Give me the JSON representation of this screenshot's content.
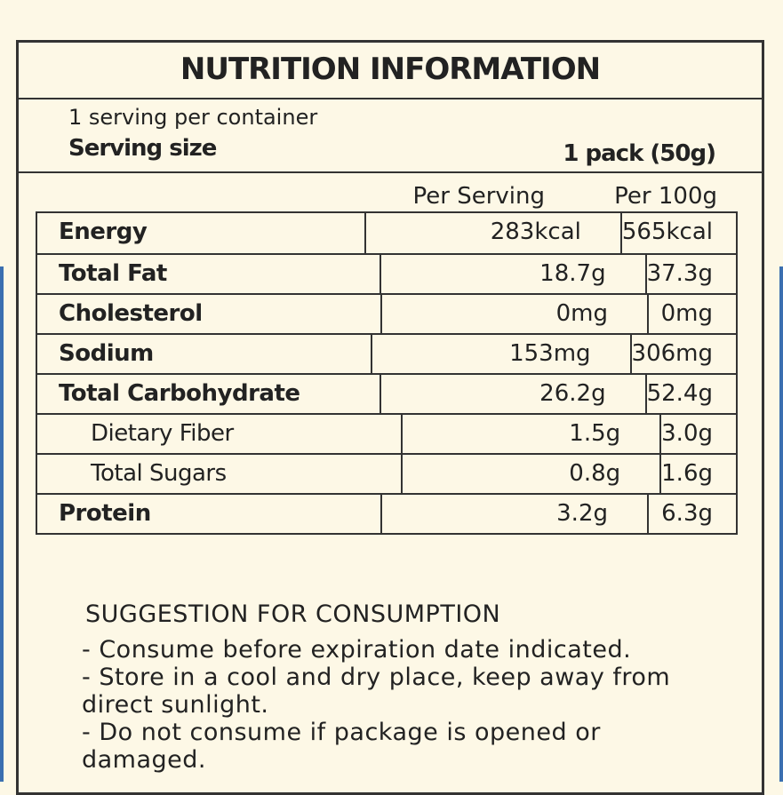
{
  "header": {
    "title": "NUTRITION INFORMATION"
  },
  "serving": {
    "per_container": "1 serving per container",
    "size_label": "Serving size",
    "size_value": "1 pack (50g)"
  },
  "table": {
    "columns": [
      "Per Serving",
      "Per 100g"
    ],
    "rows": [
      [
        "Energy",
        "283kcal",
        "565kcal"
      ],
      [
        "Total Fat",
        "18.7g",
        "37.3g"
      ],
      [
        "Cholesterol",
        "0mg",
        "0mg"
      ],
      [
        "Sodium",
        "153mg",
        "306mg"
      ],
      [
        "Total Carbohydrate",
        "26.2g",
        "52.4g"
      ],
      [
        "Dietary Fiber",
        "1.5g",
        "3.0g"
      ],
      [
        "Total Sugars",
        "0.8g",
        "1.6g"
      ],
      [
        "Protein",
        "3.2g",
        "6.3g"
      ]
    ]
  },
  "suggestion": {
    "title": "SUGGESTION FOR CONSUMPTION",
    "items": [
      "- Consume before expiration date indicated.",
      "- Store in a cool and dry place, keep away from direct sunlight.",
      "- Do not consume if package is opened or damaged."
    ]
  }
}
